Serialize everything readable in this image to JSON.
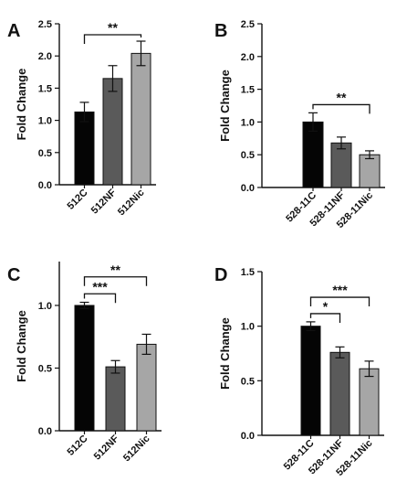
{
  "chart_data": [
    {
      "panel": "A",
      "type": "bar",
      "ylabel": "Fold Change",
      "ylim": [
        0,
        2.5
      ],
      "yticks": [
        0.0,
        0.5,
        1.0,
        1.5,
        2.0,
        2.5
      ],
      "categories": [
        "512C",
        "512NF",
        "512Nic"
      ],
      "values": [
        1.13,
        1.65,
        2.04
      ],
      "errors": [
        0.15,
        0.2,
        0.19
      ],
      "colors": [
        "#050505",
        "#5a5a5a",
        "#a6a6a6"
      ],
      "significance": [
        {
          "from": 0,
          "to": 2,
          "label": "**"
        }
      ]
    },
    {
      "panel": "B",
      "type": "bar",
      "ylabel": "Fold Change",
      "ylim": [
        0,
        2.5
      ],
      "yticks": [
        0.0,
        0.5,
        1.0,
        1.5,
        2.0,
        2.5
      ],
      "categories": [
        "528-11C",
        "528-11NF",
        "528-11Nic"
      ],
      "values": [
        1.0,
        0.68,
        0.5
      ],
      "errors": [
        0.14,
        0.09,
        0.06
      ],
      "colors": [
        "#050505",
        "#5a5a5a",
        "#a6a6a6"
      ],
      "significance": [
        {
          "from": 0,
          "to": 2,
          "label": "**"
        }
      ]
    },
    {
      "panel": "C",
      "type": "bar",
      "ylabel": "Fold Change",
      "ylim": [
        0,
        1.35
      ],
      "yticks": [
        0.0,
        0.5,
        1.0
      ],
      "categories": [
        "512C",
        "512NF",
        "512Nic"
      ],
      "values": [
        1.0,
        0.51,
        0.69
      ],
      "errors": [
        0.025,
        0.05,
        0.08
      ],
      "colors": [
        "#050505",
        "#5a5a5a",
        "#a6a6a6"
      ],
      "significance": [
        {
          "from": 0,
          "to": 1,
          "label": "***"
        },
        {
          "from": 0,
          "to": 2,
          "label": "**"
        }
      ]
    },
    {
      "panel": "D",
      "type": "bar",
      "ylabel": "Fold Change",
      "ylim": [
        0,
        1.5
      ],
      "yticks": [
        0.0,
        0.5,
        1.0,
        1.5
      ],
      "categories": [
        "528-11C",
        "528-11NF",
        "528-11Nic"
      ],
      "values": [
        1.0,
        0.76,
        0.61
      ],
      "errors": [
        0.04,
        0.05,
        0.07
      ],
      "colors": [
        "#050505",
        "#5a5a5a",
        "#a6a6a6"
      ],
      "significance": [
        {
          "from": 0,
          "to": 1,
          "label": "*"
        },
        {
          "from": 0,
          "to": 2,
          "label": "***"
        }
      ]
    }
  ]
}
